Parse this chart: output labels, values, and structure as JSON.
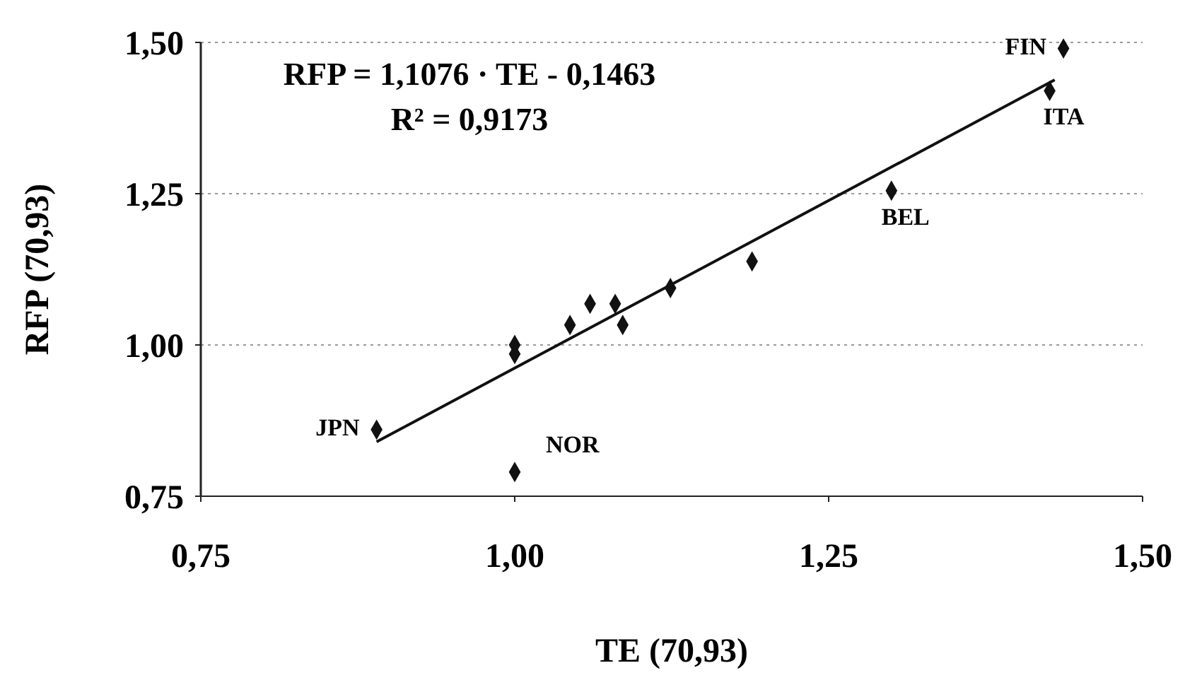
{
  "chart_data": {
    "type": "scatter",
    "xlabel": "TE (70,93)",
    "ylabel": "RFP (70,93)",
    "xlim": [
      0.75,
      1.5
    ],
    "ylim": [
      0.75,
      1.5
    ],
    "xticks": [
      {
        "value": 0.75,
        "label": "0,75"
      },
      {
        "value": 1,
        "label": "1,00"
      },
      {
        "value": 1.25,
        "label": "1,25"
      },
      {
        "value": 1.5,
        "label": "1,50"
      }
    ],
    "yticks": [
      {
        "value": 0.75,
        "label": "0,75"
      },
      {
        "value": 1,
        "label": "1,00"
      },
      {
        "value": 1.25,
        "label": "1,25"
      },
      {
        "value": 1.5,
        "label": "1,50"
      }
    ],
    "grid": "y",
    "series": [
      {
        "marker": "diamond",
        "color": "#111111",
        "x": [
          0.89,
          1.0,
          1.0,
          1.0,
          1.044,
          1.06,
          1.08,
          1.086,
          1.124,
          1.189,
          1.3,
          1.426,
          1.437
        ],
        "values": [
          0.86,
          0.79,
          1.0,
          0.985,
          1.033,
          1.068,
          1.068,
          1.033,
          1.094,
          1.138,
          1.255,
          1.42,
          1.49
        ]
      },
      {
        "type": "line",
        "color": "#111111",
        "x": [
          0.89,
          1.43
        ],
        "values": [
          0.84,
          1.438
        ]
      }
    ],
    "annotations": [
      "RFP = 1,1076 · TE - 0,1463",
      "R² = 0,9173",
      {
        "text": "JPN",
        "x": 0.89,
        "y": 0.86
      },
      {
        "text": "NOR",
        "x": 1.0,
        "y": 0.79
      },
      {
        "text": "BEL",
        "x": 1.3,
        "y": 1.255
      },
      {
        "text": "ITA",
        "x": 1.426,
        "y": 1.42
      },
      {
        "text": "FIN",
        "x": 1.437,
        "y": 1.49
      }
    ]
  }
}
